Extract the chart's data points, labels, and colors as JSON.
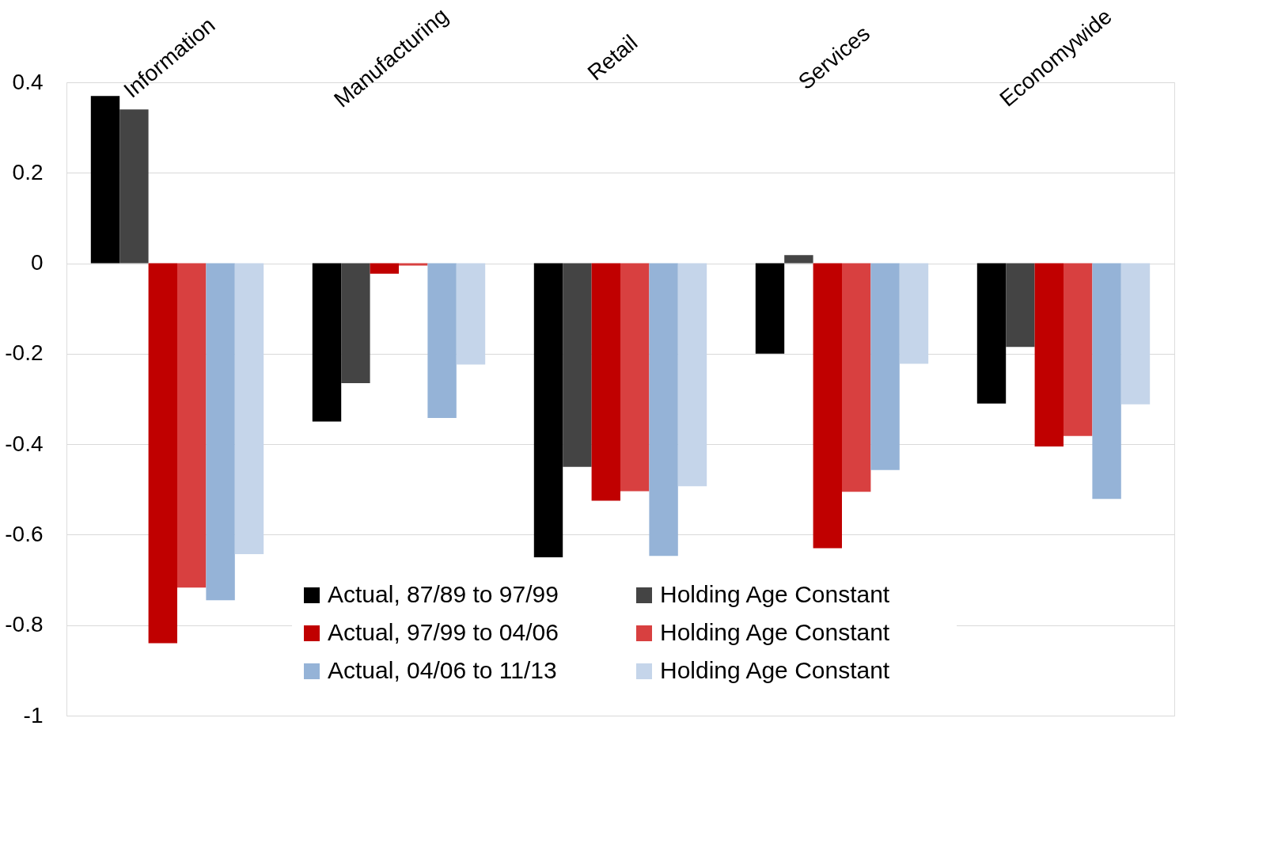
{
  "chart_data": {
    "type": "bar",
    "categories": [
      "Information",
      "Manufacturing",
      "Retail",
      "Services",
      "Economywide"
    ],
    "series": [
      {
        "name": "Actual, 87/89 to 97/99",
        "color": "#000000",
        "values": [
          0.37,
          -0.35,
          -0.65,
          -0.2,
          -0.31
        ]
      },
      {
        "name": "Holding Age Constant",
        "color": "#444444",
        "values": [
          0.34,
          -0.265,
          -0.45,
          0.018,
          -0.185
        ]
      },
      {
        "name": "Actual, 97/99 to 04/06",
        "color": "#c00000",
        "values": [
          -0.84,
          -0.023,
          -0.525,
          -0.63,
          -0.405
        ]
      },
      {
        "name": "Holding Age Constant",
        "color": "#d84040",
        "values": [
          -0.717,
          -0.005,
          -0.504,
          -0.505,
          -0.382
        ]
      },
      {
        "name": "Actual, 04/06 to 11/13",
        "color": "#95b3d7",
        "values": [
          -0.745,
          -0.342,
          -0.647,
          -0.457,
          -0.521
        ]
      },
      {
        "name": "Holding Age Constant",
        "color": "#c5d5ea",
        "values": [
          -0.643,
          -0.224,
          -0.493,
          -0.222,
          -0.312
        ]
      }
    ],
    "ylim": [
      -1,
      0.4
    ],
    "yticks": [
      -1,
      -0.8,
      -0.6,
      -0.4,
      -0.2,
      0,
      0.2,
      0.4
    ],
    "grid": "y",
    "legend": "bottom"
  }
}
